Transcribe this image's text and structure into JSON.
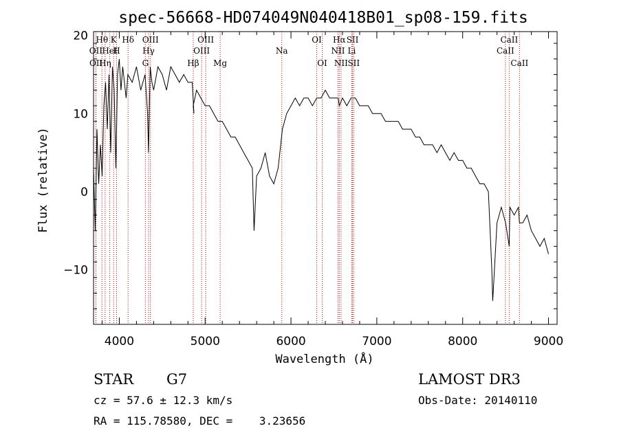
{
  "chart_data": {
    "type": "line",
    "title": "spec-56668-HD074049N040418B01_sp08-159.fits",
    "xlabel": "Wavelength (Å)",
    "ylabel": "Flux (relative)",
    "xlim": [
      3700,
      9100
    ],
    "ylim": [
      -17,
      20.5
    ],
    "x_ticks": [
      4000,
      5000,
      6000,
      7000,
      8000,
      9000
    ],
    "y_ticks": [
      -10,
      0,
      10,
      20
    ],
    "grid": false,
    "series": [
      {
        "x": [
          3700,
          3720,
          3740,
          3760,
          3780,
          3800,
          3820,
          3840,
          3860,
          3880,
          3900,
          3920,
          3940,
          3960,
          3980,
          4000,
          4020,
          4040,
          4060,
          4080,
          4100,
          4150,
          4200,
          4250,
          4300,
          4330,
          4340,
          4360,
          4380,
          4400,
          4450,
          4500,
          4550,
          4600,
          4650,
          4700,
          4750,
          4800,
          4850,
          4870,
          4861,
          4900,
          4950,
          5000,
          5050,
          5100,
          5150,
          5200,
          5250,
          5300,
          5350,
          5400,
          5450,
          5500,
          5550,
          5570,
          5600,
          5650,
          5700,
          5750,
          5800,
          5850,
          5900,
          5950,
          6000,
          6050,
          6100,
          6150,
          6200,
          6250,
          6300,
          6350,
          6400,
          6450,
          6500,
          6550,
          6563,
          6600,
          6650,
          6700,
          6750,
          6800,
          6850,
          6900,
          6950,
          7000,
          7050,
          7100,
          7150,
          7200,
          7250,
          7300,
          7350,
          7400,
          7450,
          7500,
          7550,
          7600,
          7650,
          7700,
          7750,
          7800,
          7850,
          7900,
          7950,
          8000,
          8050,
          8100,
          8150,
          8200,
          8250,
          8300,
          8340,
          8350,
          8400,
          8450,
          8500,
          8542,
          8550,
          8600,
          8650,
          8662,
          8700,
          8750,
          8800,
          8850,
          8900,
          8950,
          9000
        ],
        "y": [
          3,
          -5,
          8,
          1,
          6,
          2,
          11,
          14,
          8,
          15,
          5,
          16,
          13,
          3,
          15,
          17,
          13,
          16,
          14,
          12,
          15,
          14,
          16,
          13,
          15,
          10,
          5,
          16,
          14,
          13,
          16,
          15,
          13,
          16,
          15,
          14,
          15,
          14,
          14,
          10,
          11,
          13,
          12,
          11,
          11,
          10,
          9,
          9,
          8,
          7,
          7,
          6,
          5,
          4,
          3,
          -5,
          2,
          3,
          5,
          2,
          1,
          3,
          8,
          10,
          11,
          12,
          11,
          12,
          12,
          11,
          12,
          12,
          13,
          12,
          12,
          12,
          11,
          12,
          11,
          12,
          12,
          11,
          11,
          11,
          10,
          10,
          10,
          9,
          9,
          9,
          9,
          8,
          8,
          8,
          7,
          7,
          6,
          6,
          6,
          5,
          6,
          5,
          4,
          5,
          4,
          4,
          3,
          3,
          2,
          1,
          1,
          0,
          -10,
          -14,
          -4,
          -2,
          -4,
          -7,
          -2,
          -3,
          -2,
          -4,
          -4,
          -3,
          -5,
          -6,
          -7,
          -6,
          -8
        ]
      }
    ],
    "lines": [
      {
        "label": "Hθ",
        "x": 3798,
        "row": 1
      },
      {
        "label": "OII",
        "x": 3727,
        "row": 2
      },
      {
        "label": "OII",
        "x": 3729,
        "row": 3
      },
      {
        "label": "K",
        "x": 3934,
        "row": 1
      },
      {
        "label": "HeI",
        "x": 3889,
        "row": 2
      },
      {
        "label": "Hη",
        "x": 3835,
        "row": 3
      },
      {
        "label": "Hδ",
        "x": 4102,
        "row": 1
      },
      {
        "label": "H",
        "x": 3968,
        "row": 2
      },
      {
        "label": "G",
        "x": 4304,
        "row": 3
      },
      {
        "label": "OIII",
        "x": 4363,
        "row": 1
      },
      {
        "label": "Hγ",
        "x": 4341,
        "row": 2
      },
      {
        "label": "OIII",
        "x": 5007,
        "row": 1
      },
      {
        "label": "OIII",
        "x": 4959,
        "row": 2
      },
      {
        "label": "Hβ",
        "x": 4861,
        "row": 3
      },
      {
        "label": "Mg",
        "x": 5175,
        "row": 3
      },
      {
        "label": "Na",
        "x": 5893,
        "row": 2
      },
      {
        "label": "OI",
        "x": 6300,
        "row": 1
      },
      {
        "label": "OI",
        "x": 6364,
        "row": 3
      },
      {
        "label": "Hα",
        "x": 6563,
        "row": 1
      },
      {
        "label": "NII",
        "x": 6548,
        "row": 2
      },
      {
        "label": "NII",
        "x": 6583,
        "row": 3
      },
      {
        "label": "SII",
        "x": 6717,
        "row": 1
      },
      {
        "label": "Li",
        "x": 6708,
        "row": 2
      },
      {
        "label": "SII",
        "x": 6731,
        "row": 3
      },
      {
        "label": "CaII",
        "x": 8542,
        "row": 1
      },
      {
        "label": "CaII",
        "x": 8498,
        "row": 2
      },
      {
        "label": "CaII",
        "x": 8662,
        "row": 3
      }
    ]
  },
  "info": {
    "object_class": "STAR",
    "subclass": "G7",
    "survey": "LAMOST DR3",
    "cz": "cz = 57.6 ± 12.3 km/s",
    "obs_date": "Obs-Date: 20140110",
    "coords": "RA = 115.78580, DEC =    3.23656"
  },
  "colors": {
    "spectrum": "#000000",
    "line_markers": "#cc0000",
    "axes": "#000000"
  }
}
